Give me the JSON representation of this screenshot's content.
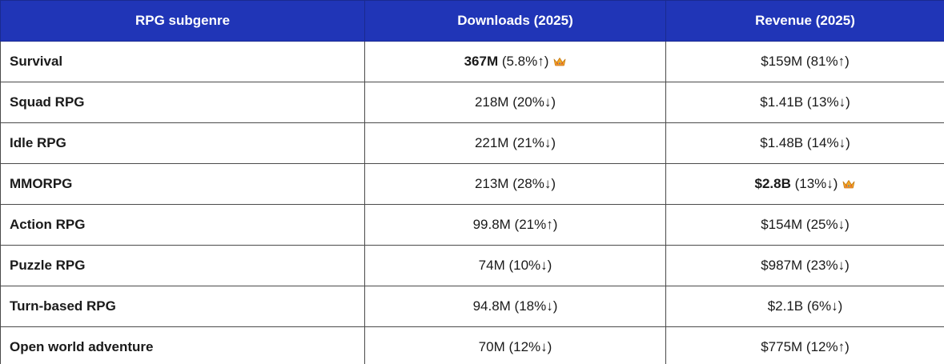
{
  "table": {
    "headers": [
      "RPG subgenre",
      "Downloads (2025)",
      "Revenue (2025)"
    ],
    "rows": [
      {
        "genre": "Survival",
        "downloads": {
          "value": "367M",
          "change": " (5.8%↑)",
          "top": true
        },
        "revenue": {
          "value": "$159M",
          "change": " (81%↑)",
          "top": false
        }
      },
      {
        "genre": "Squad RPG",
        "downloads": {
          "value": "218M",
          "change": " (20%↓)",
          "top": false
        },
        "revenue": {
          "value": "$1.41B",
          "change": " (13%↓)",
          "top": false
        }
      },
      {
        "genre": "Idle RPG",
        "downloads": {
          "value": "221M",
          "change": " (21%↓)",
          "top": false
        },
        "revenue": {
          "value": "$1.48B",
          "change": " (14%↓)",
          "top": false
        }
      },
      {
        "genre": "MMORPG",
        "downloads": {
          "value": "213M",
          "change": " (28%↓)",
          "top": false
        },
        "revenue": {
          "value": "$2.8B",
          "change": " (13%↓)",
          "top": true
        }
      },
      {
        "genre": "Action RPG",
        "downloads": {
          "value": "99.8M",
          "change": " (21%↑)",
          "top": false
        },
        "revenue": {
          "value": "$154M",
          "change": " (25%↓)",
          "top": false
        }
      },
      {
        "genre": "Puzzle RPG",
        "downloads": {
          "value": "74M",
          "change": " (10%↓)",
          "top": false
        },
        "revenue": {
          "value": "$987M",
          "change": " (23%↓)",
          "top": false
        }
      },
      {
        "genre": "Turn-based RPG",
        "downloads": {
          "value": "94.8M",
          "change": " (18%↓)",
          "top": false
        },
        "revenue": {
          "value": "$2.1B",
          "change": " (6%↓)",
          "top": false
        }
      },
      {
        "genre": "Open world adventure",
        "downloads": {
          "value": "70M",
          "change": " (12%↓)",
          "top": false
        },
        "revenue": {
          "value": "$775M",
          "change": " (12%↑)",
          "top": false
        }
      }
    ]
  },
  "icons": {
    "top_marker": "crown-icon"
  },
  "colors": {
    "header_bg": "#2035b7",
    "header_text": "#ffffff",
    "crown_gold": "#f5a623",
    "crown_red": "#d0453a"
  }
}
